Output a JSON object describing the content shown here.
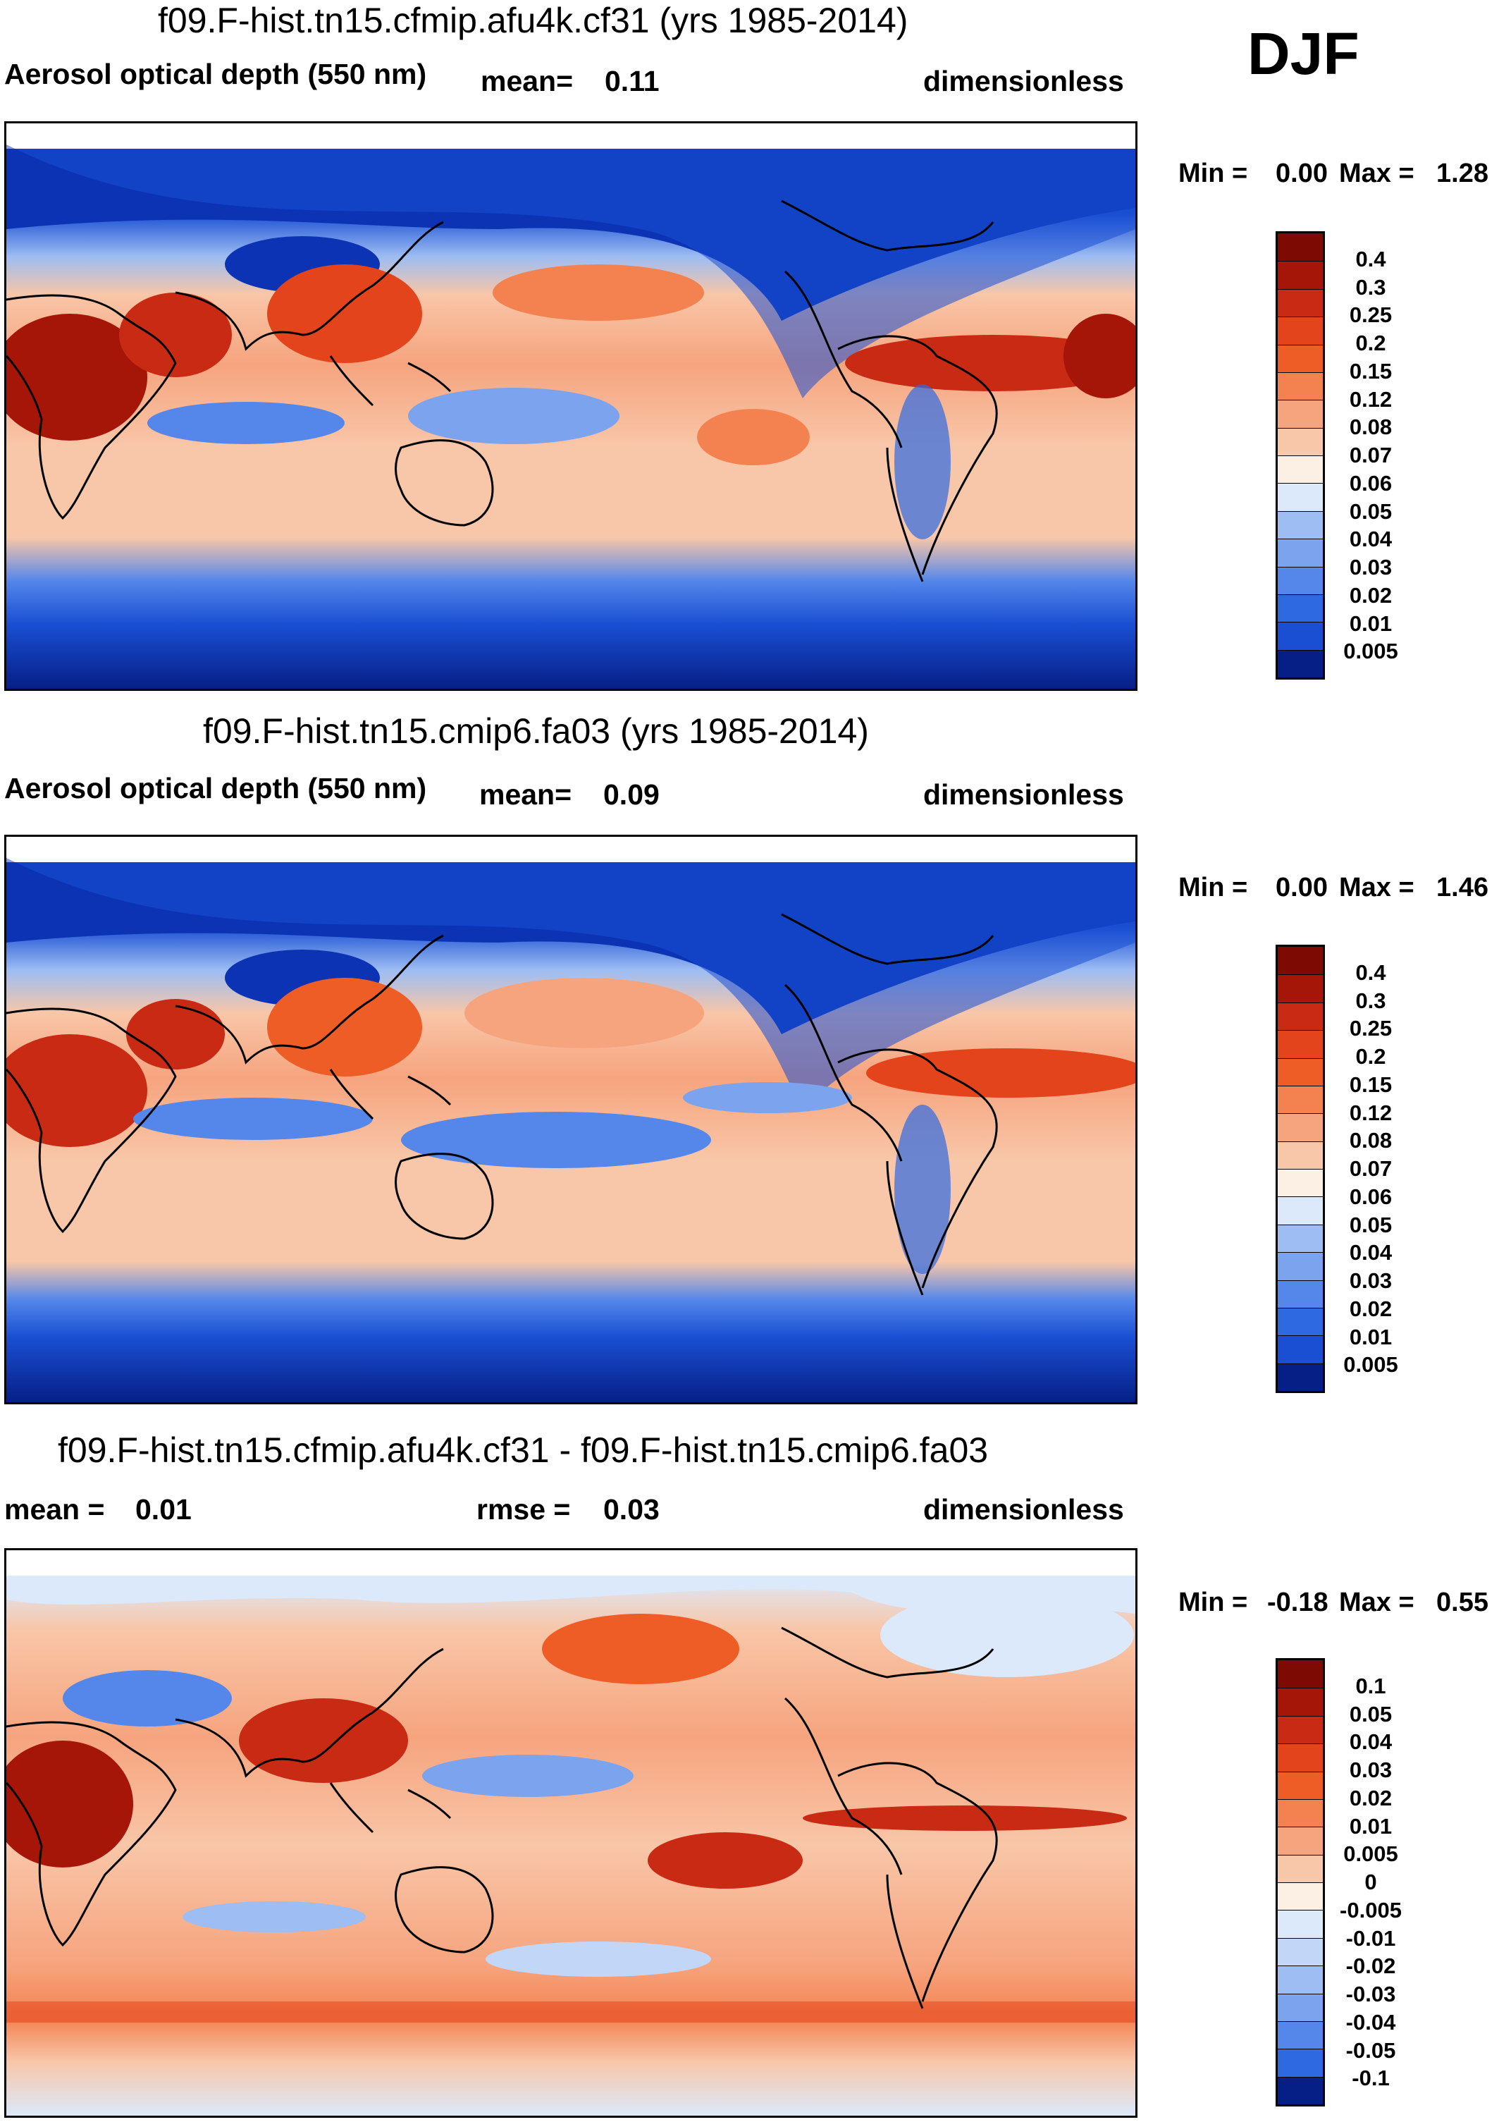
{
  "season_label": "DJF",
  "palette": {
    "positive": [
      "#f9e4d6",
      "#f8c6a8",
      "#f6a47e",
      "#f48251",
      "#ef5d26",
      "#e4441b",
      "#c92a14",
      "#a51609",
      "#7d0a03"
    ],
    "negative": [
      "#dce9fb",
      "#c2d7f8",
      "#9dbdf3",
      "#7ba3ee",
      "#5587ea",
      "#2f69e2",
      "#1a4fd3",
      "#0b33b3",
      "#061f86"
    ],
    "land_outline": "#000000"
  },
  "panels": [
    {
      "id": "panel-1",
      "title": "f09.F-hist.tn15.cfmip.afu4k.cf31 (yrs 1985-2014)",
      "variable": "Aerosol optical depth (550 nm)",
      "stat1_label": "mean=",
      "stat1_value": "0.11",
      "stat2_label": "",
      "stat2_value": "",
      "units": "dimensionless",
      "min_label": "Min =",
      "min_value": "0.00",
      "max_label": "Max =",
      "max_value": "1.28",
      "colorbar_levels": [
        "0.4",
        "0.3",
        "0.25",
        "0.2",
        "0.15",
        "0.12",
        "0.08",
        "0.07",
        "0.06",
        "0.05",
        "0.04",
        "0.03",
        "0.02",
        "0.01",
        "0.005"
      ],
      "colorbar_colors": [
        "#7d0a03",
        "#a51609",
        "#c92a14",
        "#e4441b",
        "#ef5d26",
        "#f48251",
        "#f6a47e",
        "#f8c6a8",
        "#fcefe4",
        "#dce9fb",
        "#9dbdf3",
        "#7ba3ee",
        "#5587ea",
        "#2f69e2",
        "#1a4fd3",
        "#061f86"
      ]
    },
    {
      "id": "panel-2",
      "title": "f09.F-hist.tn15.cmip6.fa03 (yrs 1985-2014)",
      "variable": "Aerosol optical depth (550 nm)",
      "stat1_label": "mean=",
      "stat1_value": "0.09",
      "stat2_label": "",
      "stat2_value": "",
      "units": "dimensionless",
      "min_label": "Min =",
      "min_value": "0.00",
      "max_label": "Max =",
      "max_value": "1.46",
      "colorbar_levels": [
        "0.4",
        "0.3",
        "0.25",
        "0.2",
        "0.15",
        "0.12",
        "0.08",
        "0.07",
        "0.06",
        "0.05",
        "0.04",
        "0.03",
        "0.02",
        "0.01",
        "0.005"
      ],
      "colorbar_colors": [
        "#7d0a03",
        "#a51609",
        "#c92a14",
        "#e4441b",
        "#ef5d26",
        "#f48251",
        "#f6a47e",
        "#f8c6a8",
        "#fcefe4",
        "#dce9fb",
        "#9dbdf3",
        "#7ba3ee",
        "#5587ea",
        "#2f69e2",
        "#1a4fd3",
        "#061f86"
      ]
    },
    {
      "id": "panel-3",
      "title": "f09.F-hist.tn15.cfmip.afu4k.cf31 - f09.F-hist.tn15.cmip6.fa03",
      "variable": "",
      "stat1_label": "mean =",
      "stat1_value": "0.01",
      "stat2_label": "rmse =",
      "stat2_value": "0.03",
      "units": "dimensionless",
      "min_label": "Min =",
      "min_value": "-0.18",
      "max_label": "Max =",
      "max_value": "0.55",
      "colorbar_levels": [
        "0.1",
        "0.05",
        "0.04",
        "0.03",
        "0.02",
        "0.01",
        "0.005",
        "0",
        "-0.005",
        "-0.01",
        "-0.02",
        "-0.03",
        "-0.04",
        "-0.05",
        "-0.1"
      ],
      "colorbar_colors": [
        "#7d0a03",
        "#a51609",
        "#c92a14",
        "#e4441b",
        "#ef5d26",
        "#f48251",
        "#f6a47e",
        "#f8c6a8",
        "#fcefe4",
        "#dce9fb",
        "#c2d7f8",
        "#9dbdf3",
        "#7ba3ee",
        "#5587ea",
        "#2f69e2",
        "#061f86"
      ]
    }
  ]
}
